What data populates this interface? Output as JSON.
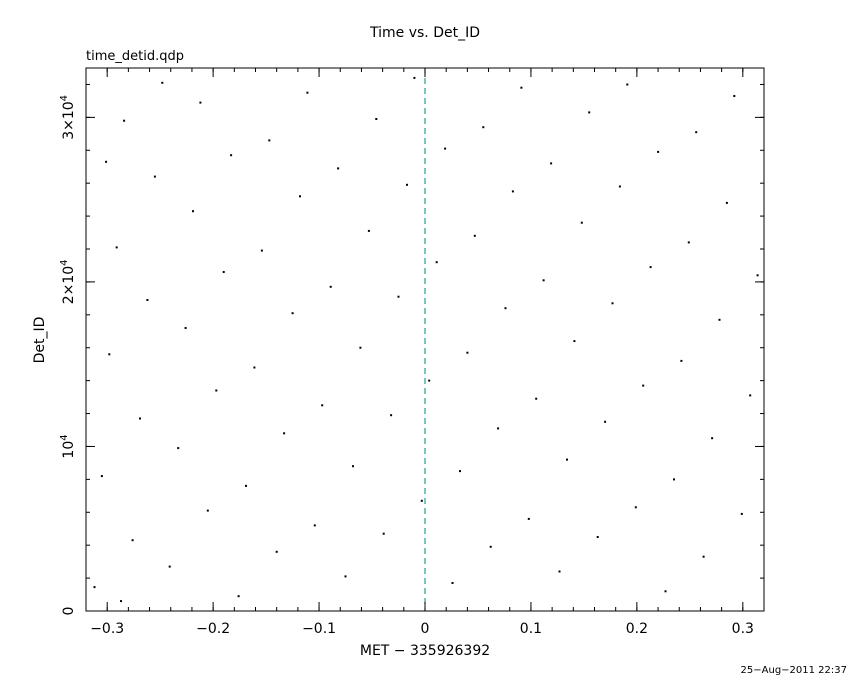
{
  "chart_data": {
    "type": "scatter",
    "title": "Time vs. Det_ID",
    "file_label": "time_detid.qdp",
    "xlabel": "MET − 335926392",
    "ylabel": "Det_ID",
    "xlim": [
      -0.32,
      0.32
    ],
    "ylim": [
      0,
      33000
    ],
    "x_ticks": [
      {
        "value": -0.3,
        "label": "−0.3"
      },
      {
        "value": -0.2,
        "label": "−0.2"
      },
      {
        "value": -0.1,
        "label": "−0.1"
      },
      {
        "value": 0,
        "label": "0"
      },
      {
        "value": 0.1,
        "label": "0.1"
      },
      {
        "value": 0.2,
        "label": "0.2"
      },
      {
        "value": 0.3,
        "label": "0.3"
      }
    ],
    "y_ticks": [
      {
        "value": 0,
        "base": "0",
        "exp": ""
      },
      {
        "value": 10000,
        "base": "10",
        "exp": "4"
      },
      {
        "value": 20000,
        "base": "2×10",
        "exp": "4"
      },
      {
        "value": 30000,
        "base": "3×10",
        "exp": "4"
      }
    ],
    "reference_line": {
      "x": 0,
      "style": "dashed",
      "color": "#2a9d8f"
    },
    "series": [
      {
        "marker_color": "#000000",
        "points": [
          [
            -0.312,
            1450
          ],
          [
            -0.305,
            8200
          ],
          [
            -0.298,
            15600
          ],
          [
            -0.291,
            22100
          ],
          [
            -0.284,
            29800
          ],
          [
            -0.276,
            4300
          ],
          [
            -0.269,
            11700
          ],
          [
            -0.262,
            18900
          ],
          [
            -0.255,
            26400
          ],
          [
            -0.248,
            32100
          ],
          [
            -0.241,
            2700
          ],
          [
            -0.233,
            9900
          ],
          [
            -0.226,
            17200
          ],
          [
            -0.219,
            24300
          ],
          [
            -0.212,
            30900
          ],
          [
            -0.205,
            6100
          ],
          [
            -0.197,
            13400
          ],
          [
            -0.19,
            20600
          ],
          [
            -0.183,
            27700
          ],
          [
            -0.176,
            900
          ],
          [
            -0.169,
            7600
          ],
          [
            -0.161,
            14800
          ],
          [
            -0.154,
            21900
          ],
          [
            -0.147,
            28600
          ],
          [
            -0.14,
            3600
          ],
          [
            -0.133,
            10800
          ],
          [
            -0.125,
            18100
          ],
          [
            -0.118,
            25200
          ],
          [
            -0.111,
            31500
          ],
          [
            -0.104,
            5200
          ],
          [
            -0.097,
            12500
          ],
          [
            -0.089,
            19700
          ],
          [
            -0.082,
            26900
          ],
          [
            -0.075,
            2100
          ],
          [
            -0.068,
            8800
          ],
          [
            -0.061,
            16000
          ],
          [
            -0.053,
            23100
          ],
          [
            -0.046,
            29900
          ],
          [
            -0.039,
            4700
          ],
          [
            -0.032,
            11900
          ],
          [
            -0.025,
            19100
          ],
          [
            -0.017,
            25900
          ],
          [
            -0.01,
            32400
          ],
          [
            -0.003,
            6700
          ],
          [
            0.004,
            14000
          ],
          [
            0.011,
            21200
          ],
          [
            0.019,
            28100
          ],
          [
            0.026,
            1700
          ],
          [
            0.033,
            8500
          ],
          [
            0.04,
            15700
          ],
          [
            0.047,
            22800
          ],
          [
            0.055,
            29400
          ],
          [
            0.062,
            3900
          ],
          [
            0.069,
            11100
          ],
          [
            0.076,
            18400
          ],
          [
            0.083,
            25500
          ],
          [
            0.091,
            31800
          ],
          [
            0.098,
            5600
          ],
          [
            0.105,
            12900
          ],
          [
            0.112,
            20100
          ],
          [
            0.119,
            27200
          ],
          [
            0.127,
            2400
          ],
          [
            0.134,
            9200
          ],
          [
            0.141,
            16400
          ],
          [
            0.148,
            23600
          ],
          [
            0.155,
            30300
          ],
          [
            0.163,
            4500
          ],
          [
            0.17,
            11500
          ],
          [
            0.177,
            18700
          ],
          [
            0.184,
            25800
          ],
          [
            0.191,
            32000
          ],
          [
            0.199,
            6300
          ],
          [
            0.206,
            13700
          ],
          [
            0.213,
            20900
          ],
          [
            0.22,
            27900
          ],
          [
            0.227,
            1200
          ],
          [
            0.235,
            8000
          ],
          [
            0.242,
            15200
          ],
          [
            0.249,
            22400
          ],
          [
            0.256,
            29100
          ],
          [
            0.263,
            3300
          ],
          [
            0.271,
            10500
          ],
          [
            0.278,
            17700
          ],
          [
            0.285,
            24800
          ],
          [
            0.292,
            31300
          ],
          [
            0.299,
            5900
          ],
          [
            0.307,
            13100
          ],
          [
            0.314,
            20400
          ],
          [
            -0.301,
            27300
          ],
          [
            -0.287,
            600
          ]
        ]
      }
    ],
    "timestamp": "25−Aug−2011 22:37"
  }
}
